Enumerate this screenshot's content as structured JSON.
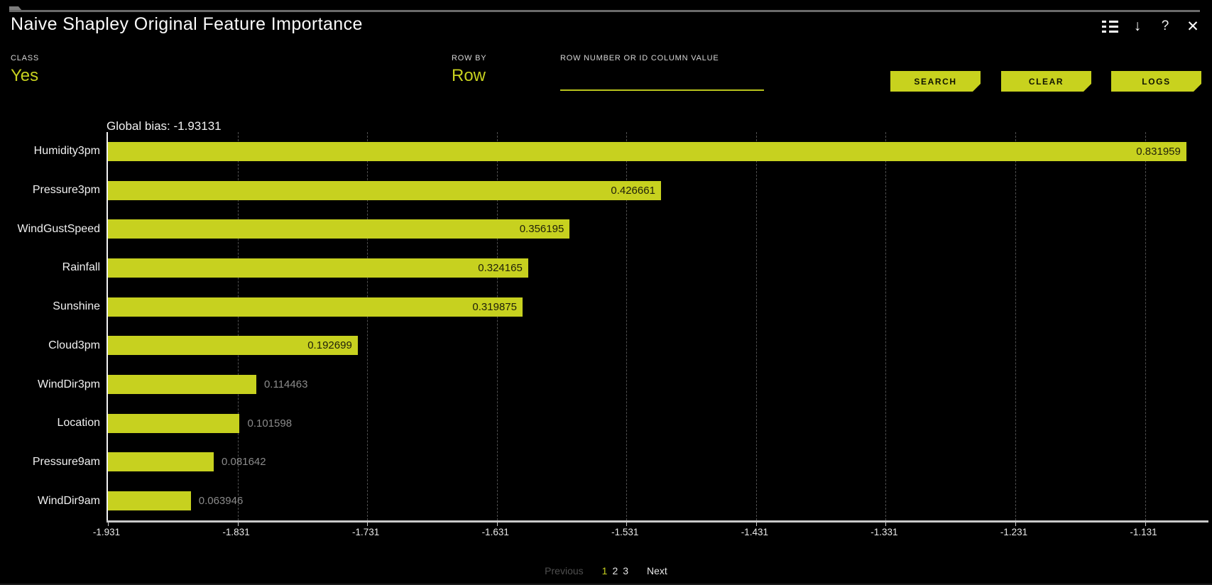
{
  "header": {
    "title": "Naive Shapley Original Feature Importance",
    "icons": [
      "options-list",
      "download-arrow",
      "help",
      "close"
    ]
  },
  "controls": {
    "class_field": {
      "label": "CLASS",
      "value": "Yes"
    },
    "row_by_field": {
      "label": "ROW BY",
      "value": "Row"
    },
    "row_input": {
      "label": "ROW NUMBER OR ID COLUMN VALUE",
      "value": "",
      "placeholder": ""
    },
    "buttons": [
      {
        "label": "SEARCH"
      },
      {
        "label": "CLEAR"
      },
      {
        "label": "LOGS"
      }
    ]
  },
  "colors": {
    "accent": "#c7d11f",
    "button": "#c8d21e",
    "background": "#000000",
    "bar_value_inside": "#20210a",
    "bar_value_outside": "#8b8b8b",
    "grid": "#4f4f4f"
  },
  "chart_data": {
    "type": "bar",
    "orientation": "horizontal",
    "title": "Global bias: -1.93131",
    "global_bias": -1.93131,
    "categories": [
      "Humidity3pm",
      "Pressure3pm",
      "WindGustSpeed",
      "Rainfall",
      "Sunshine",
      "Cloud3pm",
      "WindDir3pm",
      "Location",
      "Pressure9am",
      "WindDir9am"
    ],
    "values": [
      0.831959,
      0.426661,
      0.356195,
      0.324165,
      0.319875,
      0.192699,
      0.114463,
      0.101598,
      0.081642,
      0.063946
    ],
    "value_labels": [
      "0.831959",
      "0.426661",
      "0.356195",
      "0.324165",
      "0.319875",
      "0.192699",
      "0.114463",
      "0.101598",
      "0.081642",
      "0.063946"
    ],
    "bars_start_at": -1.931,
    "x_ticks": [
      -1.931,
      -1.831,
      -1.731,
      -1.631,
      -1.531,
      -1.431,
      -1.331,
      -1.231,
      -1.131
    ],
    "x_tick_labels": [
      "-1.931",
      "-1.831",
      "-1.731",
      "-1.631",
      "-1.531",
      "-1.431",
      "-1.331",
      "-1.231",
      "-1.131"
    ],
    "xlim": [
      -1.931,
      -1.082
    ],
    "xlabel": "",
    "ylabel": "",
    "grid": "dashed-vertical",
    "legend": "none",
    "bar_color": "#c7d11f",
    "inside_label_min_value": 0.15
  },
  "pagination": {
    "previous": "Previous",
    "pages": [
      "1",
      "2",
      "3"
    ],
    "current_page": "1",
    "next": "Next"
  }
}
